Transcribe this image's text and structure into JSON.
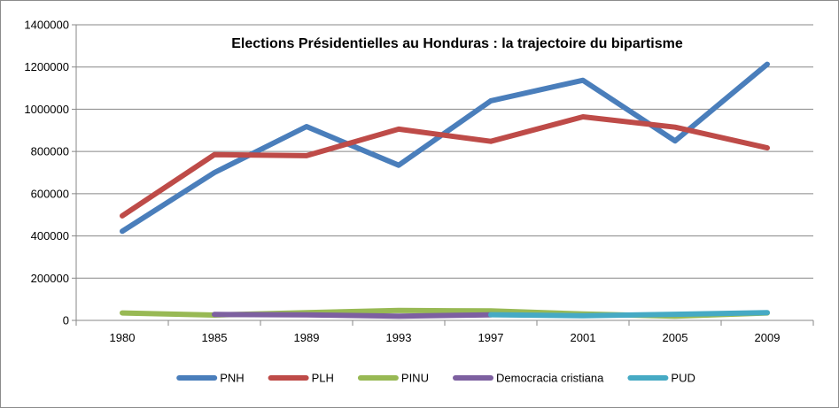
{
  "chart_data": {
    "type": "line",
    "title": "Elections Présidentielles au Honduras : la trajectoire du bipartisme",
    "xlabel": "",
    "ylabel": "",
    "categories": [
      "1980",
      "1985",
      "1989",
      "1993",
      "1997",
      "2001",
      "2005",
      "2009"
    ],
    "ylim": [
      0,
      1400000
    ],
    "yticks": [
      "0",
      "200000",
      "400000",
      "600000",
      "800000",
      "1000000",
      "1200000",
      "1400000"
    ],
    "grid": true,
    "legend_position": "bottom",
    "series": [
      {
        "name": "PNH",
        "color": "#4a7ebb",
        "values": [
          422000,
          700000,
          918000,
          735000,
          1040000,
          1137000,
          850000,
          1213000
        ]
      },
      {
        "name": "PLH",
        "color": "#be4b48",
        "values": [
          495000,
          785000,
          780000,
          906000,
          848000,
          964000,
          915000,
          817000
        ]
      },
      {
        "name": "PINU",
        "color": "#98b954",
        "values": [
          35000,
          25000,
          37000,
          47000,
          45000,
          30000,
          20000,
          35000
        ]
      },
      {
        "name": "Democracia cristiana",
        "color": "#7d60a0",
        "values": [
          null,
          28000,
          26000,
          20000,
          26000,
          null,
          null,
          null
        ]
      },
      {
        "name": "PUD",
        "color": "#46aac4",
        "values": [
          null,
          null,
          null,
          null,
          27000,
          22000,
          29000,
          37000
        ]
      }
    ]
  }
}
